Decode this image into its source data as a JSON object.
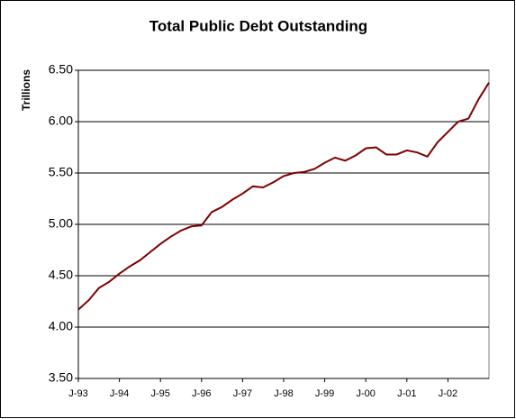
{
  "chart_data": {
    "type": "line",
    "title": "Total Public Debt Outstanding",
    "y_label": "Trillions",
    "x": [
      1993,
      1993.25,
      1993.5,
      1993.75,
      1994,
      1994.25,
      1994.5,
      1994.75,
      1995,
      1995.25,
      1995.5,
      1995.75,
      1996,
      1996.25,
      1996.5,
      1996.75,
      1997,
      1997.25,
      1997.5,
      1997.75,
      1998,
      1998.25,
      1998.5,
      1998.75,
      1999,
      1999.25,
      1999.5,
      1999.75,
      2000,
      2000.25,
      2000.5,
      2000.75,
      2001,
      2001.25,
      2001.5,
      2001.75,
      2002,
      2002.25,
      2002.5,
      2002.75,
      2003
    ],
    "series": [
      {
        "name": "Total Public Debt Outstanding",
        "color": "#800000",
        "values": [
          4.17,
          4.26,
          4.38,
          4.44,
          4.52,
          4.59,
          4.65,
          4.73,
          4.81,
          4.88,
          4.94,
          4.98,
          4.99,
          5.12,
          5.17,
          5.24,
          5.3,
          5.37,
          5.36,
          5.41,
          5.47,
          5.5,
          5.51,
          5.54,
          5.6,
          5.65,
          5.62,
          5.67,
          5.74,
          5.75,
          5.68,
          5.68,
          5.72,
          5.7,
          5.66,
          5.8,
          5.9,
          6.0,
          6.03,
          6.22,
          6.38
        ]
      }
    ],
    "xlim": [
      1993,
      2003
    ],
    "xticks": [
      {
        "value": 1993,
        "label": "J-93"
      },
      {
        "value": 1994,
        "label": "J-94"
      },
      {
        "value": 1995,
        "label": "J-95"
      },
      {
        "value": 1996,
        "label": "J-96"
      },
      {
        "value": 1997,
        "label": "J-97"
      },
      {
        "value": 1998,
        "label": "J-98"
      },
      {
        "value": 1999,
        "label": "J-99"
      },
      {
        "value": 2000,
        "label": "J-00"
      },
      {
        "value": 2001,
        "label": "J-01"
      },
      {
        "value": 2002,
        "label": "J-02"
      }
    ],
    "ylim": [
      3.5,
      6.5
    ],
    "yticks": [
      {
        "value": 3.5,
        "label": "3.50"
      },
      {
        "value": 4,
        "label": "4.00"
      },
      {
        "value": 4.5,
        "label": "4.50"
      },
      {
        "value": 5,
        "label": "5.00"
      },
      {
        "value": 5.5,
        "label": "5.50"
      },
      {
        "value": 6,
        "label": "6.00"
      },
      {
        "value": 6.5,
        "label": "6.50"
      }
    ],
    "grid": true
  }
}
